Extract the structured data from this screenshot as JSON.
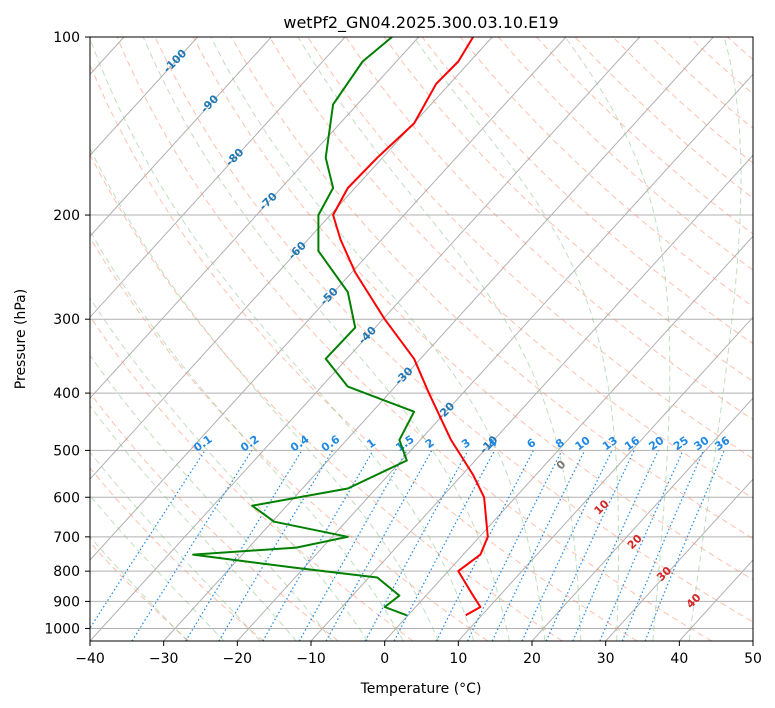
{
  "chart_data": {
    "type": "line",
    "title": "wetPf2_GN04.2025.300.03.10.E19",
    "xlabel": "Temperature (°C)",
    "ylabel": "Pressure (hPa)",
    "xlim": [
      -40,
      50
    ],
    "ylim": [
      1050,
      100
    ],
    "y_scale": "log",
    "grid": true,
    "x_ticks": [
      "−40",
      "−30",
      "−20",
      "−10",
      "0",
      "10",
      "20",
      "30",
      "40",
      "50"
    ],
    "y_ticks": [
      "100",
      "200",
      "300",
      "400",
      "500",
      "600",
      "700",
      "800",
      "900",
      "1000"
    ],
    "series": [
      {
        "name": "",
        "color": "#ff0000",
        "points": [
          [
            11,
            950
          ],
          [
            13,
            920
          ],
          [
            12,
            880
          ],
          [
            10,
            800
          ],
          [
            13,
            750
          ],
          [
            14,
            700
          ],
          [
            13.5,
            600
          ],
          [
            12,
            550
          ],
          [
            9,
            480
          ],
          [
            6,
            400
          ],
          [
            4,
            350
          ],
          [
            0,
            300
          ],
          [
            -4,
            250
          ],
          [
            -6,
            220
          ],
          [
            -7,
            200
          ],
          [
            -5,
            180
          ],
          [
            -1,
            160
          ],
          [
            4,
            140
          ],
          [
            7,
            120
          ],
          [
            10,
            110
          ],
          [
            12,
            100
          ]
        ]
      },
      {
        "name": "",
        "color": "#008000",
        "points": [
          [
            3,
            950
          ],
          [
            0,
            920
          ],
          [
            2,
            880
          ],
          [
            -1,
            820
          ],
          [
            -12,
            790
          ],
          [
            -26,
            750
          ],
          [
            -12,
            730
          ],
          [
            -5,
            700
          ],
          [
            -15,
            660
          ],
          [
            -18,
            620
          ],
          [
            -5,
            580
          ],
          [
            3,
            520
          ],
          [
            2,
            480
          ],
          [
            4,
            430
          ],
          [
            -5,
            390
          ],
          [
            -8,
            350
          ],
          [
            -4,
            310
          ],
          [
            -5,
            270
          ],
          [
            -9,
            230
          ],
          [
            -9,
            200
          ],
          [
            -7,
            180
          ],
          [
            -8,
            160
          ],
          [
            -7,
            130
          ],
          [
            -3,
            110
          ],
          [
            1,
            100
          ]
        ]
      }
    ],
    "isotherm_labels": [
      "-100",
      "-90",
      "-80",
      "-70",
      "-60",
      "-50",
      "-40",
      "-30",
      "-20",
      "-10"
    ],
    "mixing_ratio_labels": [
      "0.1",
      "0.2",
      "0.4",
      "0.6",
      "1",
      "1.5",
      "2",
      "3",
      "4",
      "6",
      "8",
      "10",
      "13",
      "16",
      "20",
      "25",
      "30",
      "36"
    ],
    "dry_adiabat_labels": [
      "0",
      "10",
      "20",
      "30",
      "40"
    ],
    "colors": {
      "isotherm_text": "#1f77b4",
      "mixing_ratio": "#1e88e5",
      "dry_adiabat_text": "#d62728",
      "dry_adiabat_line": "#ff8c69",
      "moist_adiabat_line": "#7fbf7f",
      "grid": "#b0b0b0"
    }
  }
}
